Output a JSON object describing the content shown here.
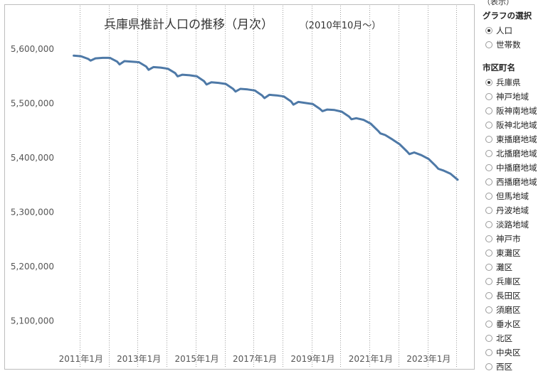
{
  "chart_data": {
    "type": "line",
    "title": "兵庫県推計人口の推移（月次）",
    "subtitle": "（2010年10月～）",
    "ylim": [
      5050000,
      5625000
    ],
    "yticks": [
      5100000,
      5200000,
      5300000,
      5400000,
      5500000,
      5600000
    ],
    "ytick_labels": [
      "5,100,000",
      "5,200,000",
      "5,300,000",
      "5,400,000",
      "5,500,000",
      "5,600,000"
    ],
    "xlim": [
      "2010-06",
      "2024-06"
    ],
    "xtick_labels": [
      {
        "date": "2011-01",
        "label": "2011年1月"
      },
      {
        "date": "2013-01",
        "label": "2013年1月"
      },
      {
        "date": "2015-01",
        "label": "2015年1月"
      },
      {
        "date": "2017-01",
        "label": "2017年1月"
      },
      {
        "date": "2019-01",
        "label": "2019年1月"
      },
      {
        "date": "2021-01",
        "label": "2021年1月"
      },
      {
        "date": "2023-01",
        "label": "2023年1月"
      }
    ],
    "vlines": [
      "2010-12",
      "2011-12",
      "2012-12",
      "2013-12",
      "2014-12",
      "2015-12",
      "2016-12",
      "2017-12",
      "2018-12",
      "2019-12",
      "2020-12",
      "2021-12",
      "2022-12",
      "2023-12"
    ],
    "grid": false,
    "color": "#4e79a7",
    "x": [
      "2010-10",
      "2011-01",
      "2011-04",
      "2011-05",
      "2011-07",
      "2011-10",
      "2012-01",
      "2012-04",
      "2012-05",
      "2012-07",
      "2012-10",
      "2013-01",
      "2013-04",
      "2013-05",
      "2013-07",
      "2013-10",
      "2014-01",
      "2014-04",
      "2014-05",
      "2014-07",
      "2014-10",
      "2015-01",
      "2015-04",
      "2015-05",
      "2015-07",
      "2015-10",
      "2016-01",
      "2016-04",
      "2016-05",
      "2016-07",
      "2016-10",
      "2017-01",
      "2017-04",
      "2017-05",
      "2017-07",
      "2017-10",
      "2018-01",
      "2018-04",
      "2018-05",
      "2018-07",
      "2018-10",
      "2019-01",
      "2019-04",
      "2019-05",
      "2019-07",
      "2019-10",
      "2020-01",
      "2020-04",
      "2020-05",
      "2020-07",
      "2020-10",
      "2021-01",
      "2021-04",
      "2021-05",
      "2021-07",
      "2021-10",
      "2022-01",
      "2022-04",
      "2022-05",
      "2022-07",
      "2022-10",
      "2023-01",
      "2023-04",
      "2023-05",
      "2023-07",
      "2023-10",
      "2024-01"
    ],
    "y": [
      5588000,
      5587000,
      5582000,
      5579000,
      5583000,
      5584000,
      5584000,
      5577000,
      5572000,
      5578000,
      5577000,
      5576000,
      5568000,
      5562000,
      5567000,
      5566000,
      5564000,
      5556000,
      5550000,
      5553000,
      5552000,
      5550000,
      5541000,
      5535000,
      5539000,
      5538000,
      5536000,
      5527000,
      5522000,
      5527000,
      5526000,
      5524000,
      5515000,
      5510000,
      5516000,
      5515000,
      5513000,
      5504000,
      5498000,
      5503000,
      5501000,
      5499000,
      5490000,
      5486000,
      5489000,
      5488000,
      5485000,
      5476000,
      5471000,
      5473000,
      5470000,
      5463000,
      5450000,
      5445000,
      5442000,
      5434000,
      5425000,
      5412000,
      5407000,
      5410000,
      5405000,
      5398000,
      5385000,
      5380000,
      5377000,
      5371000,
      5360000
    ]
  },
  "side_panel": {
    "top_stub": "（表示）",
    "graph_select": {
      "title": "グラフの選択",
      "options": [
        "人口",
        "世帯数"
      ],
      "selected": "人口"
    },
    "area_select": {
      "title": "市区町名",
      "options": [
        "兵庫県",
        "神戸地域",
        "阪神南地域",
        "阪神北地域",
        "東播磨地域",
        "北播磨地域",
        "中播磨地域",
        "西播磨地域",
        "但馬地域",
        "丹波地域",
        "淡路地域",
        "神戸市",
        "東灘区",
        "灘区",
        "兵庫区",
        "長田区",
        "須磨区",
        "垂水区",
        "北区",
        "中央区",
        "西区"
      ],
      "selected": "兵庫県"
    }
  }
}
